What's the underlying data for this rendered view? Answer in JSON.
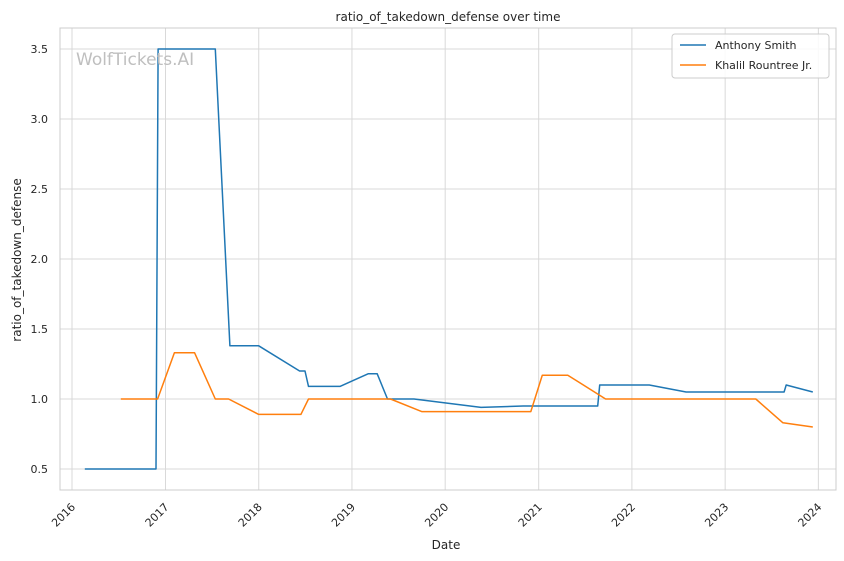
{
  "chart_data": {
    "type": "line",
    "title": "ratio_of_takedown_defense over time",
    "xlabel": "Date",
    "ylabel": "ratio_of_takedown_defense",
    "watermark": "WolfTickets.AI",
    "xlim": [
      "2015-11-15",
      "2024-03-10"
    ],
    "ylim": [
      0.35,
      3.65
    ],
    "xticks": [
      "2016",
      "2017",
      "2018",
      "2019",
      "2020",
      "2021",
      "2022",
      "2023",
      "2024"
    ],
    "yticks": [
      "0.5",
      "1.0",
      "1.5",
      "2.0",
      "2.5",
      "3.0",
      "3.5"
    ],
    "grid": true,
    "legend_position": "top-right",
    "series": [
      {
        "name": "Anthony Smith",
        "color": "#1f77b4",
        "x": [
          "2016-02-20",
          "2016-11-25",
          "2016-12-03",
          "2017-07-15",
          "2017-09-10",
          "2018-01-01",
          "2018-06-10",
          "2018-07-01",
          "2018-07-15",
          "2018-11-15",
          "2019-03-05",
          "2019-04-10",
          "2019-05-20",
          "2019-09-01",
          "2020-05-20",
          "2020-11-01",
          "2021-08-20",
          "2021-08-28",
          "2022-03-10",
          "2022-08-01",
          "2023-04-01",
          "2023-08-20",
          "2023-08-28",
          "2023-12-10"
        ],
        "y": [
          0.5,
          0.5,
          3.5,
          3.5,
          1.38,
          1.38,
          1.2,
          1.2,
          1.09,
          1.09,
          1.18,
          1.18,
          1.0,
          1.0,
          0.94,
          0.95,
          0.95,
          1.1,
          1.1,
          1.05,
          1.05,
          1.05,
          1.1,
          1.05
        ]
      },
      {
        "name": "Khalil Rountree Jr.",
        "color": "#ff7f0e",
        "x": [
          "2016-07-10",
          "2016-12-01",
          "2017-02-05",
          "2017-04-25",
          "2017-07-15",
          "2017-09-05",
          "2018-01-01",
          "2018-06-15",
          "2018-07-15",
          "2019-06-01",
          "2019-10-01",
          "2020-02-01",
          "2020-12-01",
          "2021-01-15",
          "2021-04-25",
          "2021-09-20",
          "2022-05-01",
          "2023-05-01",
          "2023-08-15",
          "2023-12-10"
        ],
        "y": [
          1.0,
          1.0,
          1.33,
          1.33,
          1.0,
          1.0,
          0.89,
          0.89,
          1.0,
          1.0,
          0.91,
          0.91,
          0.91,
          1.17,
          1.17,
          1.0,
          1.0,
          1.0,
          0.83,
          0.8
        ]
      }
    ]
  }
}
